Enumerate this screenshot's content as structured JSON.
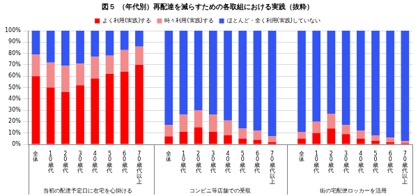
{
  "chart_data": {
    "type": "bar",
    "title": "図５ （年代別）再配達を減らすための各取組における実践（抜粋）",
    "categories": [
      "全体",
      "10歳代",
      "20歳代",
      "30歳代",
      "40歳代",
      "50歳代",
      "60歳代",
      "70歳代以上",
      null,
      "全体",
      "10歳代",
      "20歳代",
      "30歳代",
      "40歳代",
      "50歳代",
      "60歳代",
      "70歳代以上",
      null,
      "全体",
      "10歳代",
      "20歳代",
      "30歳代",
      "40歳代",
      "50歳代",
      "60歳代",
      "70歳代以上"
    ],
    "groups": [
      "当初の配達予定日に在宅を心掛ける",
      "コンビニ等店舗での受取",
      "街の宅配便ロッカーを活用"
    ],
    "series": [
      {
        "name": "よく利用(実践)する",
        "color": "#ff0000",
        "values": [
          60,
          50,
          46,
          52,
          58,
          62,
          64,
          70,
          null,
          7,
          11,
          15,
          11,
          8,
          5,
          4,
          2,
          null,
          5,
          10,
          14,
          9,
          5,
          3,
          2,
          1
        ]
      },
      {
        "name": "時々利用(実践)する",
        "color": "#f48a8a",
        "values": [
          19,
          22,
          23,
          19,
          19,
          16,
          19,
          16,
          null,
          10,
          15,
          15,
          15,
          13,
          9,
          8,
          5,
          null,
          6,
          10,
          13,
          8,
          7,
          5,
          4,
          2
        ]
      },
      {
        "name": "ほとんど・全く利用(実践)していない",
        "color": "#3355f5",
        "values": [
          21,
          28,
          31,
          29,
          23,
          22,
          17,
          14,
          null,
          83,
          74,
          70,
          74,
          79,
          86,
          88,
          93,
          null,
          89,
          80,
          73,
          83,
          88,
          92,
          94,
          97
        ]
      }
    ],
    "stacked": true,
    "ylim": [
      0,
      100
    ],
    "yticks": [
      {
        "value": 0,
        "label": "0%"
      },
      {
        "value": 10,
        "label": "10%"
      },
      {
        "value": 20,
        "label": "20%"
      },
      {
        "value": 30,
        "label": "30%"
      },
      {
        "value": 40,
        "label": "40%"
      },
      {
        "value": 50,
        "label": "50%"
      },
      {
        "value": 60,
        "label": "60%"
      },
      {
        "value": 70,
        "label": "70%"
      },
      {
        "value": 80,
        "label": "80%"
      },
      {
        "value": 90,
        "label": "90%"
      },
      {
        "value": 100,
        "label": "100%"
      }
    ],
    "grid": true,
    "legend": "top"
  }
}
